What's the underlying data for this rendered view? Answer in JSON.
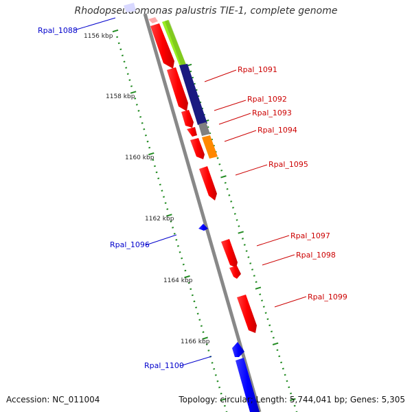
{
  "title": "Rhodopseudomonas palustris TIE-1, complete genome",
  "accession": "Accession: NC_011004",
  "topology": "Topology: circular; Length: 5,744,041 bp; Genes: 5,305",
  "tick_labels": [
    "1156 kbp",
    "1158 kbp",
    "1160 kbp",
    "1162 kbp",
    "1164 kbp",
    "1166 kbp"
  ],
  "gene_labels": [
    {
      "text": "Rpal_1088",
      "color": "#0000cc"
    },
    {
      "text": "Rpal_1091",
      "color": "#cc0000"
    },
    {
      "text": "Rpal_1092",
      "color": "#cc0000"
    },
    {
      "text": "Rpal_1093",
      "color": "#cc0000"
    },
    {
      "text": "Rpal_1094",
      "color": "#cc0000"
    },
    {
      "text": "Rpal_1095",
      "color": "#cc0000"
    },
    {
      "text": "Rpal_1096",
      "color": "#0000cc"
    },
    {
      "text": "Rpal_1097",
      "color": "#cc0000"
    },
    {
      "text": "Rpal_1098",
      "color": "#cc0000"
    },
    {
      "text": "Rpal_1099",
      "color": "#cc0000"
    },
    {
      "text": "Rpal_1100",
      "color": "#0000cc"
    }
  ],
  "colors": {
    "forward_gene": "#ff0000",
    "reverse_gene": "#0000ff",
    "backbone": "#888888",
    "ticks": "#228b22",
    "cog_green": "#99ee22",
    "cog_navy": "#1a1a80",
    "cog_gray": "#808080",
    "cog_orange": "#ff8800"
  }
}
